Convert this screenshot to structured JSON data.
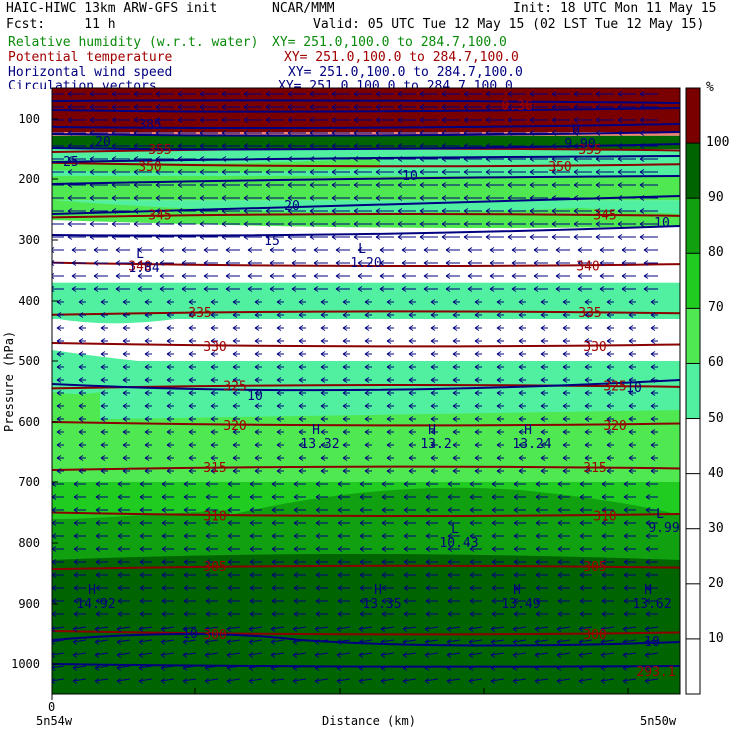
{
  "header": {
    "line1_left": "HAIC-HIWC 13km ARW-GFS init",
    "line1_center": "NCAR/MMM",
    "line1_right": "Init: 18 UTC Mon 11 May 15",
    "line2_left": "Fcst:     11 h",
    "line2_right": "Valid: 05 UTC Tue 12 May 15 (02 LST Tue 12 May 15)",
    "fields": [
      {
        "name": "Relative humidity (w.r.t. water)",
        "xy": "XY= 251.0,100.0 to 284.7,100.0",
        "color": "#0a8a0a"
      },
      {
        "name": "Potential temperature",
        "xy": "XY= 251.0,100.0 to 284.7,100.0",
        "color": "#a00000"
      },
      {
        "name": "Horizontal wind speed",
        "xy": "XY= 251.0,100.0 to 284.7,100.0",
        "color": "#000080"
      },
      {
        "name": "Circulation vectors",
        "xy": "XY= 251.0,100.0 to 284.7,100.0",
        "color": "#000080"
      }
    ]
  },
  "chart_data": {
    "type": "heatmap",
    "subtype": "vertical cross-section (filled RH, contoured theta and wind speed, vectors)",
    "xlabel": "Distance (km)",
    "ylabel": "Pressure (hPa)",
    "x_ticks": [
      "0"
    ],
    "x_end_labels": {
      "left": "5n54w",
      "right": "5n50w"
    },
    "y_ticks": [
      100,
      200,
      300,
      400,
      500,
      600,
      700,
      800,
      900,
      1000
    ],
    "ylim": [
      1050,
      70
    ],
    "colorbar": {
      "unit": "%",
      "labels": [
        10,
        20,
        30,
        40,
        50,
        60,
        70,
        80,
        90,
        100
      ],
      "bins": [
        {
          "range": [
            0,
            50
          ],
          "color": "#ffffff"
        },
        {
          "range": [
            50,
            60
          ],
          "color": "#50f0a0"
        },
        {
          "range": [
            60,
            70
          ],
          "color": "#50e850"
        },
        {
          "range": [
            70,
            80
          ],
          "color": "#20cc20"
        },
        {
          "range": [
            80,
            90
          ],
          "color": "#10a010"
        },
        {
          "range": [
            90,
            100
          ],
          "color": "#006400"
        },
        {
          "range": [
            100,
            110
          ],
          "color": "#7a0000"
        },
        {
          "range": [
            110,
            120
          ],
          "color": "#f08070"
        }
      ]
    },
    "rh_layers": [
      {
        "p_top": 70,
        "p_bot": 122,
        "color": "#7a0000"
      },
      {
        "p_top": 122,
        "p_bot": 128,
        "color": "#f08070"
      },
      {
        "p_top": 128,
        "p_bot": 150,
        "color": "#006400"
      },
      {
        "p_top": 150,
        "p_bot": 195,
        "color": "#50f0a0"
      },
      {
        "p_top": 195,
        "p_bot": 235,
        "color": "#50e850"
      },
      {
        "p_top": 235,
        "p_bot": 262,
        "color": "#50f0a0"
      },
      {
        "p_top": 262,
        "p_bot": 370,
        "color": "#ffffff"
      },
      {
        "p_top": 370,
        "p_bot": 430,
        "color": "#50f0a0"
      },
      {
        "p_top": 430,
        "p_bot": 500,
        "color": "#ffffff"
      },
      {
        "p_top": 500,
        "p_bot": 570,
        "color": "#50f0a0"
      },
      {
        "p_top": 570,
        "p_bot": 610,
        "color": "#50e850"
      },
      {
        "p_top": 610,
        "p_bot": 700,
        "color": "#50e850"
      },
      {
        "p_top": 700,
        "p_bot": 760,
        "color": "#20cc20"
      },
      {
        "p_top": 760,
        "p_bot": 840,
        "color": "#10a010"
      },
      {
        "p_top": 840,
        "p_bot": 1005,
        "color": "#006400"
      },
      {
        "p_top": 1005,
        "p_bot": 1050,
        "color": "#ffffff"
      }
    ],
    "theta_contours": [
      {
        "value": "355",
        "p": 150
      },
      {
        "value": "350",
        "p": 178
      },
      {
        "value": "345",
        "p": 258
      },
      {
        "value": "340",
        "p": 342
      },
      {
        "value": "335",
        "p": 418
      },
      {
        "value": "330",
        "p": 475
      },
      {
        "value": "325",
        "p": 540
      },
      {
        "value": "320",
        "p": 605
      },
      {
        "value": "315",
        "p": 675
      },
      {
        "value": "310",
        "p": 755
      },
      {
        "value": "305",
        "p": 838
      },
      {
        "value": "300",
        "p": 950
      }
    ],
    "wind_labels": [
      "10",
      "20",
      "15",
      "10",
      "10",
      "10",
      "10",
      "10"
    ],
    "extrema_labels": [
      {
        "kind": "L",
        "value": "1.84"
      },
      {
        "kind": "L",
        "value": "1.20"
      },
      {
        "kind": "H",
        "value": "13.32"
      },
      {
        "kind": "H",
        "value": "13.2"
      },
      {
        "kind": "H",
        "value": "13.24"
      },
      {
        "kind": "L",
        "value": "10.43"
      },
      {
        "kind": "L",
        "value": "9.99"
      },
      {
        "kind": "H",
        "value": "14.92"
      },
      {
        "kind": "H",
        "value": "13.35"
      },
      {
        "kind": "H",
        "value": "13.49"
      },
      {
        "kind": "H",
        "value": "13.62"
      },
      {
        "kind": "H",
        "value": "9.90"
      }
    ],
    "misc_labels": [
      "0.36",
      "293.1",
      "385",
      "25",
      "20"
    ],
    "vector_direction": "easterly (pointing left)"
  }
}
